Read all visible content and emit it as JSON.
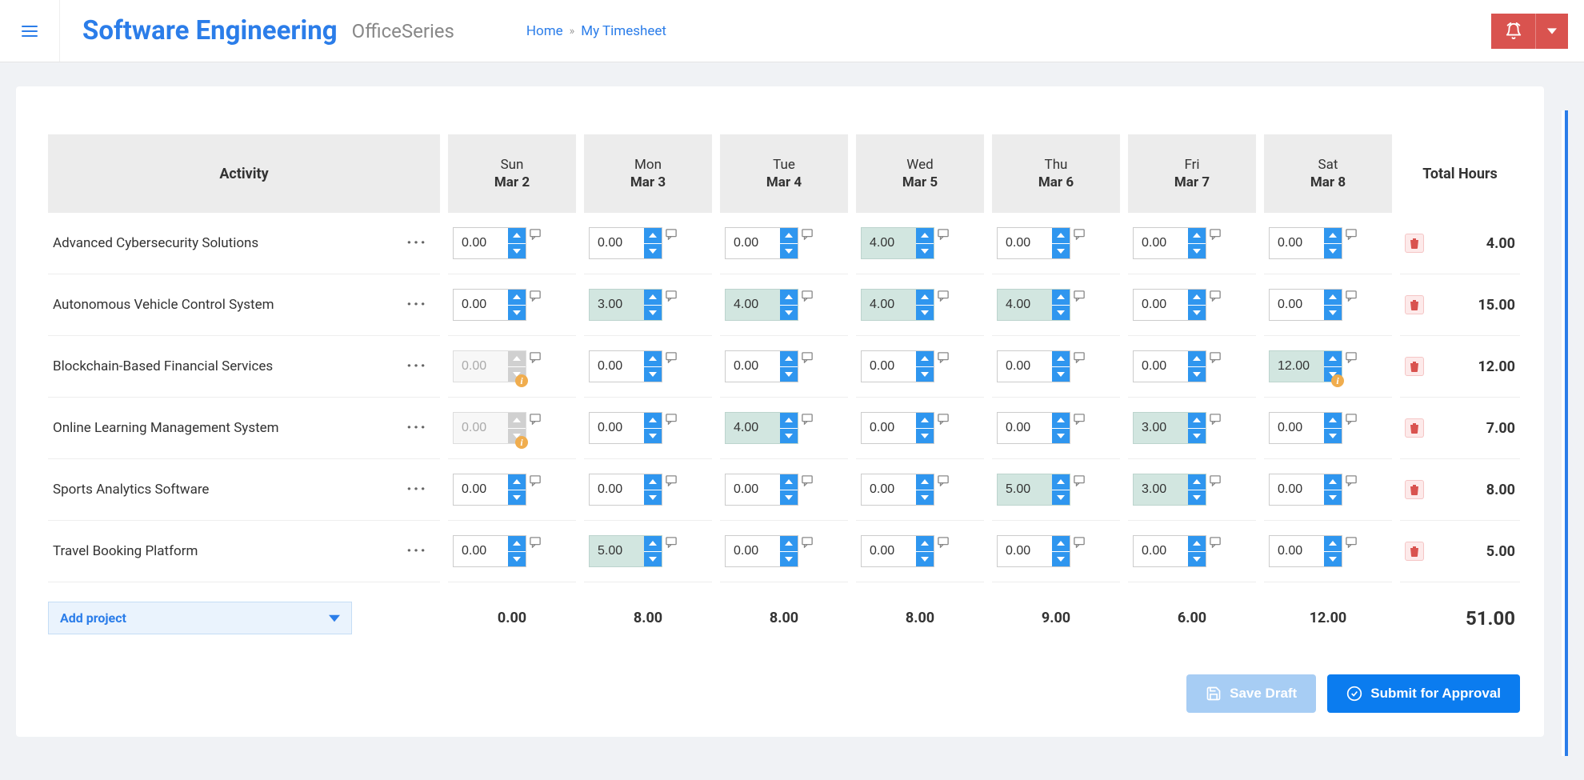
{
  "header": {
    "title": "Software Engineering",
    "subtitle": "OfficeSeries",
    "breadcrumb": {
      "home": "Home",
      "current": "My Timesheet"
    }
  },
  "table": {
    "activity_header": "Activity",
    "total_header": "Total Hours",
    "days": [
      {
        "day": "Sun",
        "date": "Mar 2"
      },
      {
        "day": "Mon",
        "date": "Mar 3"
      },
      {
        "day": "Tue",
        "date": "Mar 4"
      },
      {
        "day": "Wed",
        "date": "Mar 5"
      },
      {
        "day": "Thu",
        "date": "Mar 6"
      },
      {
        "day": "Fri",
        "date": "Mar 7"
      },
      {
        "day": "Sat",
        "date": "Mar 8"
      }
    ],
    "rows": [
      {
        "name": "Advanced Cybersecurity Solutions",
        "cells": [
          {
            "v": "0.00"
          },
          {
            "v": "0.00"
          },
          {
            "v": "0.00"
          },
          {
            "v": "4.00",
            "filled": true
          },
          {
            "v": "0.00"
          },
          {
            "v": "0.00"
          },
          {
            "v": "0.00"
          }
        ],
        "total": "4.00"
      },
      {
        "name": "Autonomous Vehicle Control System",
        "cells": [
          {
            "v": "0.00"
          },
          {
            "v": "3.00",
            "filled": true
          },
          {
            "v": "4.00",
            "filled": true
          },
          {
            "v": "4.00",
            "filled": true
          },
          {
            "v": "4.00",
            "filled": true
          },
          {
            "v": "0.00"
          },
          {
            "v": "0.00"
          }
        ],
        "total": "15.00"
      },
      {
        "name": "Blockchain-Based Financial Services",
        "cells": [
          {
            "v": "0.00",
            "disabled": true,
            "warn": true
          },
          {
            "v": "0.00"
          },
          {
            "v": "0.00"
          },
          {
            "v": "0.00"
          },
          {
            "v": "0.00"
          },
          {
            "v": "0.00"
          },
          {
            "v": "12.00",
            "filled": true,
            "warn": true
          }
        ],
        "total": "12.00"
      },
      {
        "name": "Online Learning Management System",
        "cells": [
          {
            "v": "0.00",
            "disabled": true,
            "warn": true
          },
          {
            "v": "0.00"
          },
          {
            "v": "4.00",
            "filled": true
          },
          {
            "v": "0.00"
          },
          {
            "v": "0.00"
          },
          {
            "v": "3.00",
            "filled": true
          },
          {
            "v": "0.00"
          }
        ],
        "total": "7.00"
      },
      {
        "name": "Sports Analytics Software",
        "cells": [
          {
            "v": "0.00"
          },
          {
            "v": "0.00"
          },
          {
            "v": "0.00"
          },
          {
            "v": "0.00"
          },
          {
            "v": "5.00",
            "filled": true
          },
          {
            "v": "3.00",
            "filled": true
          },
          {
            "v": "0.00"
          }
        ],
        "total": "8.00"
      },
      {
        "name": "Travel Booking Platform",
        "cells": [
          {
            "v": "0.00"
          },
          {
            "v": "5.00",
            "filled": true
          },
          {
            "v": "0.00"
          },
          {
            "v": "0.00"
          },
          {
            "v": "0.00"
          },
          {
            "v": "0.00"
          },
          {
            "v": "0.00"
          }
        ],
        "total": "5.00"
      }
    ],
    "add_project_label": "Add project",
    "column_totals": [
      "0.00",
      "8.00",
      "8.00",
      "8.00",
      "9.00",
      "6.00",
      "12.00"
    ],
    "grand_total": "51.00"
  },
  "actions": {
    "save": "Save Draft",
    "submit": "Submit for Approval"
  }
}
